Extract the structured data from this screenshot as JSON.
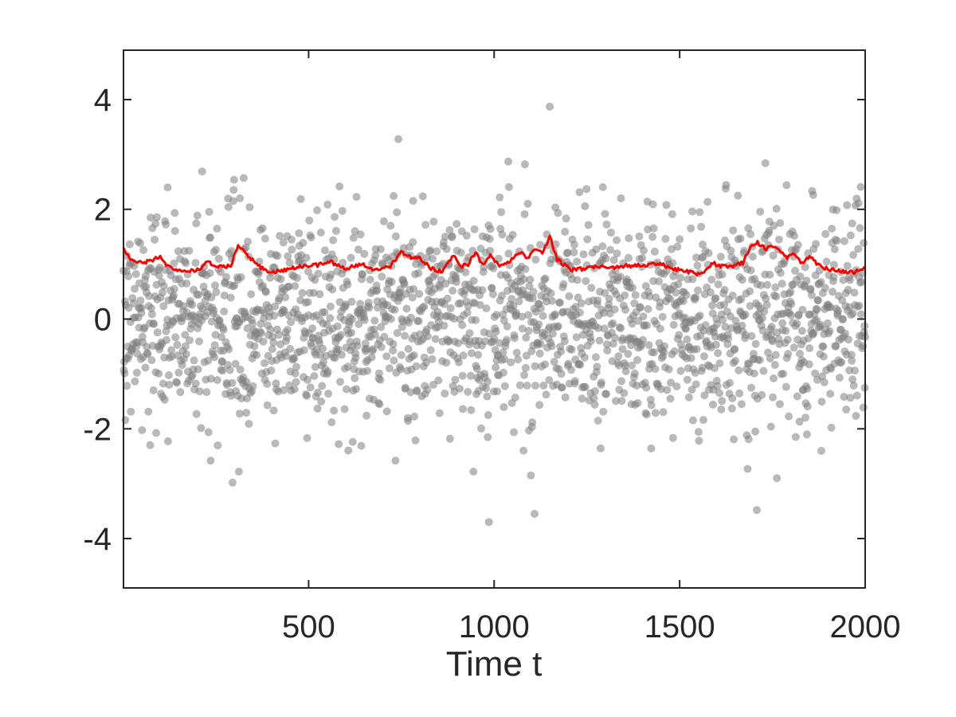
{
  "chart_data": {
    "type": "scatter",
    "title": "",
    "xlabel": "Time t",
    "ylabel": "",
    "xlim": [
      1,
      2000
    ],
    "ylim": [
      -4.9,
      4.9
    ],
    "xticks": [
      500,
      1000,
      1500,
      2000
    ],
    "xtick_labels": [
      "500",
      "1000",
      "1500",
      "2000"
    ],
    "yticks": [
      -4,
      -2,
      0,
      2,
      4
    ],
    "ytick_labels": [
      "-4",
      "-2",
      "0",
      "2",
      "4"
    ],
    "grid": false,
    "legend": "none",
    "series": [
      {
        "kind": "scatter",
        "color": "#7f7f7f",
        "n_points": 2000,
        "distribution": "approximately standard normal, mean 0, sd 1",
        "outliers": [
          {
            "x": 1150,
            "y": 3.87
          },
          {
            "x": 742,
            "y": 3.28
          },
          {
            "x": 1038,
            "y": 2.87
          },
          {
            "x": 1731,
            "y": 2.84
          },
          {
            "x": 1083,
            "y": 2.82
          },
          {
            "x": 299,
            "y": 2.54
          },
          {
            "x": 325,
            "y": 2.57
          },
          {
            "x": 213,
            "y": 2.69
          },
          {
            "x": 986,
            "y": -3.7
          },
          {
            "x": 1109,
            "y": -3.55
          },
          {
            "x": 1708,
            "y": -3.48
          },
          {
            "x": 295,
            "y": -2.98
          },
          {
            "x": 312,
            "y": -2.78
          },
          {
            "x": 944,
            "y": -2.78
          },
          {
            "x": 1099,
            "y": -2.85
          },
          {
            "x": 1762,
            "y": -2.9
          },
          {
            "x": 1683,
            "y": -2.73
          },
          {
            "x": 236,
            "y": -2.58
          },
          {
            "x": 734,
            "y": -2.58
          }
        ]
      },
      {
        "kind": "line",
        "color": "#ff0000",
        "x": [
          1,
          20,
          50,
          80,
          100,
          120,
          150,
          180,
          200,
          230,
          260,
          290,
          310,
          330,
          360,
          390,
          420,
          450,
          480,
          520,
          560,
          600,
          640,
          680,
          720,
          750,
          780,
          800,
          830,
          860,
          890,
          910,
          930,
          950,
          970,
          990,
          1010,
          1040,
          1070,
          1090,
          1110,
          1130,
          1150,
          1170,
          1190,
          1210,
          1240,
          1280,
          1320,
          1360,
          1400,
          1440,
          1480,
          1520,
          1550,
          1570,
          1590,
          1610,
          1640,
          1670,
          1690,
          1710,
          1730,
          1750,
          1770,
          1790,
          1810,
          1830,
          1850,
          1880,
          1910,
          1940,
          1970,
          2000
        ],
        "y": [
          1.28,
          1.08,
          1.02,
          1.07,
          1.14,
          0.95,
          0.87,
          0.88,
          0.9,
          1.04,
          0.96,
          0.96,
          1.35,
          1.2,
          1.0,
          0.85,
          0.87,
          0.92,
          0.96,
          0.98,
          1.04,
          0.92,
          1.0,
          0.9,
          0.96,
          1.23,
          1.1,
          1.12,
          0.92,
          0.85,
          1.16,
          0.95,
          1.0,
          1.22,
          0.97,
          1.2,
          0.98,
          1.05,
          1.23,
          1.12,
          1.28,
          1.22,
          1.5,
          1.08,
          0.98,
          0.9,
          0.92,
          0.97,
          0.94,
          0.97,
          0.98,
          1.02,
          0.92,
          0.87,
          0.82,
          0.9,
          1.02,
          0.96,
          0.96,
          1.02,
          1.3,
          1.4,
          1.28,
          1.32,
          1.22,
          1.12,
          1.2,
          1.0,
          1.15,
          0.95,
          0.9,
          0.86,
          0.85,
          0.95
        ]
      }
    ]
  }
}
